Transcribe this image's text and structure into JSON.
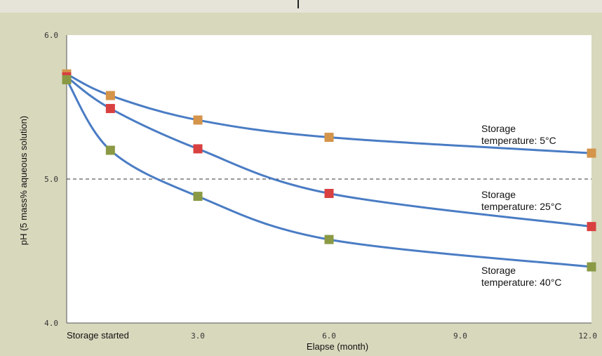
{
  "chart_data": {
    "type": "line",
    "xlabel": "Elapse (month)",
    "ylabel": "pH (5 mass% aqueous solution)",
    "xlim": [
      0,
      12
    ],
    "ylim": [
      4.0,
      6.0
    ],
    "x_ticks": [
      {
        "value": 0,
        "label": "Storage started"
      },
      {
        "value": 3,
        "label": "3.0"
      },
      {
        "value": 6,
        "label": "6.0"
      },
      {
        "value": 9,
        "label": "9.0"
      },
      {
        "value": 12,
        "label": "12.0"
      }
    ],
    "y_ticks": [
      {
        "value": 4.0,
        "label": "4.0"
      },
      {
        "value": 5.0,
        "label": "5.0"
      },
      {
        "value": 6.0,
        "label": "6.0"
      }
    ],
    "reference_line": {
      "y": 5.0,
      "style": "dashed"
    },
    "line_color": "#4a7cc4",
    "series": [
      {
        "key": "5c",
        "label_lines": [
          "Storage",
          "temperature: 5°C"
        ],
        "color": "#d4944a",
        "x": [
          0,
          1,
          3,
          6,
          12
        ],
        "y": [
          5.73,
          5.58,
          5.41,
          5.29,
          5.18
        ]
      },
      {
        "key": "25c",
        "label_lines": [
          "Storage",
          "temperature: 25°C"
        ],
        "color": "#d94040",
        "x": [
          0,
          1,
          3,
          6,
          12
        ],
        "y": [
          5.71,
          5.49,
          5.21,
          4.9,
          4.67
        ]
      },
      {
        "key": "40c",
        "label_lines": [
          "Storage",
          "temperature: 40°C"
        ],
        "color": "#8a9a44",
        "x": [
          0,
          1,
          3,
          6,
          12
        ],
        "y": [
          5.69,
          5.2,
          4.88,
          4.58,
          4.39
        ]
      }
    ]
  }
}
